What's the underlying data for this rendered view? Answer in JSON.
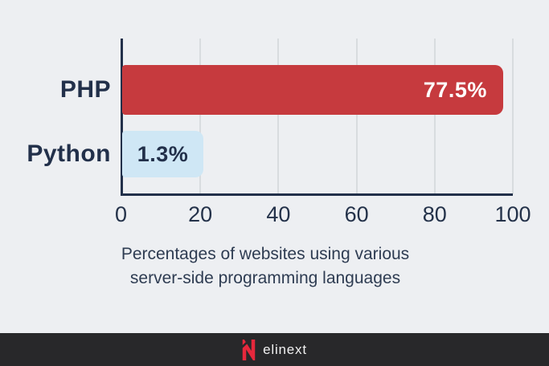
{
  "chart_data": {
    "type": "bar",
    "orientation": "horizontal",
    "categories": [
      "PHP",
      "Python"
    ],
    "values": [
      77.5,
      1.3
    ],
    "value_labels": [
      "77.5%",
      "1.3%"
    ],
    "title": "Percentages of websites using various server-side programming languages",
    "xlabel": "",
    "ylabel": "",
    "xlim": [
      0,
      100
    ],
    "x_ticks": [
      0,
      20,
      40,
      60,
      80,
      100
    ],
    "grid": "vertical",
    "legend": false,
    "bar_colors": [
      "#c63a3e",
      "#cfe7f5"
    ],
    "value_label_colors": [
      "#ffffff",
      "#22304a"
    ],
    "value_label_position": [
      "end",
      "center"
    ],
    "display_length_percent": [
      97.5,
      20.8
    ]
  },
  "caption": {
    "line1": "Percentages of websites using various",
    "line2": "server-side programming languages"
  },
  "footer": {
    "logo_text": "elinext",
    "logo_icon": "elinext-n-icon",
    "background": "#28282a",
    "logo_red": "#e6283c"
  },
  "colors": {
    "background": "#edeff2",
    "axis": "#22304a",
    "gridline": "#d8dcdf",
    "caption_text": "#2e3c52"
  }
}
